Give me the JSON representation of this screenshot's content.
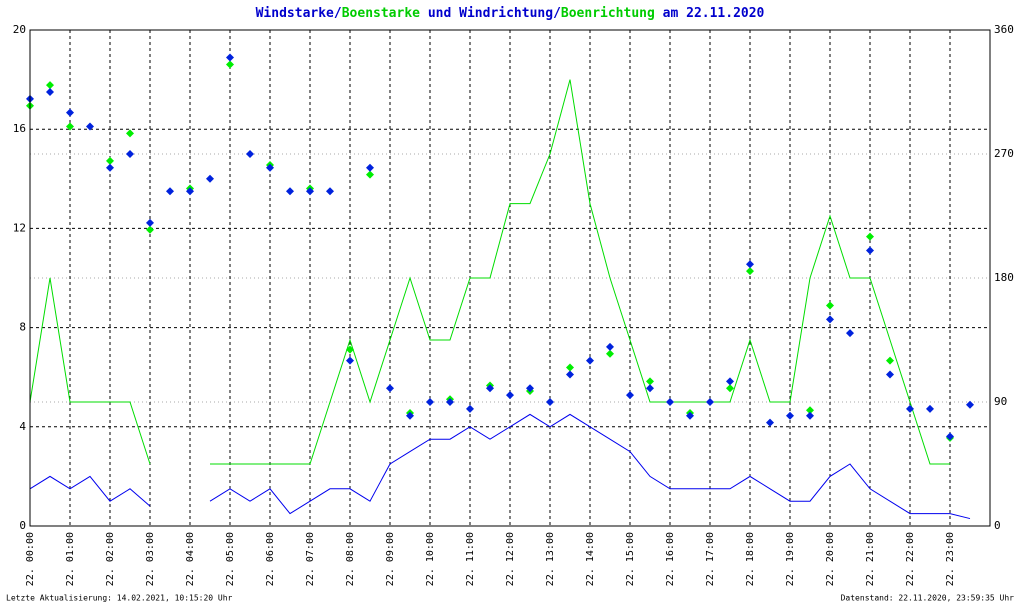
{
  "chart_data": {
    "type": "line",
    "title_parts": [
      {
        "text": "Windstarke",
        "color": "#0000cc"
      },
      {
        "text": "/",
        "color": "#0000cc"
      },
      {
        "text": "Boenstarke",
        "color": "#00cc00"
      },
      {
        "text": " und Windrichtung",
        "color": "#0000cc"
      },
      {
        "text": "/",
        "color": "#0000cc"
      },
      {
        "text": "Boenrichtung",
        "color": "#00cc00"
      },
      {
        "text": " am 22.11.2020",
        "color": "#0000cc"
      }
    ],
    "footer_left": "Letzte Aktualisierung: 14.02.2021, 10:15:20 Uhr",
    "footer_right": "Datenstand: 22.11.2020, 23:59:35 Uhr",
    "x": [
      0,
      0.5,
      1,
      1.5,
      2,
      2.5,
      3,
      3.5,
      4,
      4.5,
      5,
      5.5,
      6,
      6.5,
      7,
      7.5,
      8,
      8.5,
      9,
      9.5,
      10,
      10.5,
      11,
      11.5,
      12,
      12.5,
      13,
      13.5,
      14,
      14.5,
      15,
      15.5,
      16,
      16.5,
      17,
      17.5,
      18,
      18.5,
      19,
      19.5,
      20,
      20.5,
      21,
      21.5,
      22,
      22.5,
      23,
      23.5
    ],
    "xlim": [
      0,
      24
    ],
    "xticks": [
      {
        "value": 0,
        "label": "22. 00:00"
      },
      {
        "value": 1,
        "label": "22. 01:00"
      },
      {
        "value": 2,
        "label": "22. 02:00"
      },
      {
        "value": 3,
        "label": "22. 03:00"
      },
      {
        "value": 4,
        "label": "22. 04:00"
      },
      {
        "value": 5,
        "label": "22. 05:00"
      },
      {
        "value": 6,
        "label": "22. 06:00"
      },
      {
        "value": 7,
        "label": "22. 07:00"
      },
      {
        "value": 8,
        "label": "22. 08:00"
      },
      {
        "value": 9,
        "label": "22. 09:00"
      },
      {
        "value": 10,
        "label": "22. 10:00"
      },
      {
        "value": 11,
        "label": "22. 11:00"
      },
      {
        "value": 12,
        "label": "22. 12:00"
      },
      {
        "value": 13,
        "label": "22. 13:00"
      },
      {
        "value": 14,
        "label": "22. 14:00"
      },
      {
        "value": 15,
        "label": "22. 15:00"
      },
      {
        "value": 16,
        "label": "22. 16:00"
      },
      {
        "value": 17,
        "label": "22. 17:00"
      },
      {
        "value": 18,
        "label": "22. 18:00"
      },
      {
        "value": 19,
        "label": "22. 19:00"
      },
      {
        "value": 20,
        "label": "22. 20:00"
      },
      {
        "value": 21,
        "label": "22. 21:00"
      },
      {
        "value": 22,
        "label": "22. 22:00"
      },
      {
        "value": 23,
        "label": "22. 23:00"
      }
    ],
    "ylim": [
      0,
      20
    ],
    "yticks": [
      0,
      4,
      8,
      12,
      16,
      20
    ],
    "y2lim": [
      0,
      360
    ],
    "y2ticks": [
      0,
      90,
      180,
      270,
      360
    ],
    "grid": true,
    "series": [
      {
        "type": "line",
        "color": "#00dd00",
        "axis": "y",
        "values": [
          5,
          10,
          5,
          5,
          5,
          5,
          2.5,
          null,
          null,
          2.5,
          2.5,
          2.5,
          2.5,
          2.5,
          2.5,
          5,
          7.5,
          5,
          7.5,
          10,
          7.5,
          7.5,
          10,
          10,
          13,
          13,
          15,
          18,
          13,
          10,
          7.5,
          5,
          5,
          5,
          5,
          5,
          7.5,
          5,
          5,
          10,
          12.5,
          10,
          10,
          7.5,
          5,
          2.5,
          2.5,
          null
        ]
      },
      {
        "type": "line",
        "color": "#0000ee",
        "axis": "y",
        "values": [
          1.5,
          2,
          1.5,
          2,
          1,
          1.5,
          0.8,
          null,
          null,
          1,
          1.5,
          1,
          1.5,
          0.5,
          1,
          1.5,
          1.5,
          1,
          2.5,
          3,
          3.5,
          3.5,
          4,
          3.5,
          4,
          4.5,
          4,
          4.5,
          4,
          3.5,
          3,
          2,
          1.5,
          1.5,
          1.5,
          1.5,
          2,
          1.5,
          1,
          1,
          2,
          2.5,
          1.5,
          1,
          0.5,
          0.5,
          0.5,
          0.3
        ]
      },
      {
        "type": "scatter",
        "color": "#00ee00",
        "axis": "y2",
        "values": [
          305,
          320,
          290,
          null,
          265,
          285,
          215,
          null,
          245,
          null,
          335,
          null,
          262,
          null,
          245,
          null,
          128,
          255,
          null,
          82,
          null,
          92,
          null,
          102,
          null,
          98,
          null,
          115,
          null,
          125,
          null,
          105,
          null,
          82,
          null,
          100,
          185,
          null,
          null,
          84,
          160,
          null,
          210,
          120,
          null,
          null,
          64,
          null
        ]
      },
      {
        "type": "scatter",
        "color": "#0022dd",
        "axis": "y2",
        "values": [
          310,
          315,
          300,
          290,
          260,
          270,
          220,
          243,
          243,
          252,
          340,
          270,
          260,
          243,
          243,
          243,
          120,
          260,
          100,
          80,
          90,
          90,
          85,
          100,
          95,
          100,
          90,
          110,
          120,
          130,
          95,
          100,
          90,
          80,
          90,
          105,
          190,
          75,
          80,
          80,
          150,
          140,
          200,
          110,
          85,
          85,
          65,
          88
        ]
      }
    ]
  }
}
